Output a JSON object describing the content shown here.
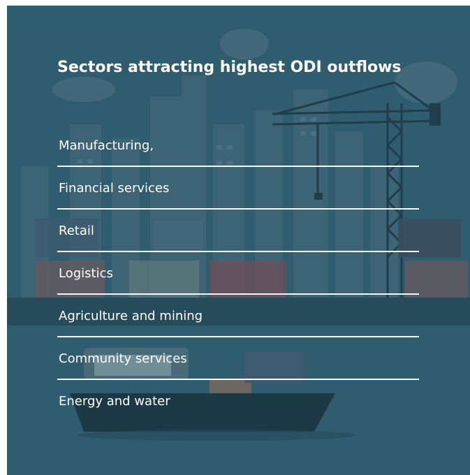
{
  "panel": {
    "title": "Sectors attracting highest ODI outflows",
    "accent_color": "#2f5c6f"
  },
  "sectors": [
    {
      "label": "Manufacturing,"
    },
    {
      "label": "Financial services"
    },
    {
      "label": "Retail"
    },
    {
      "label": "Logistics"
    },
    {
      "label": "Agriculture and mining"
    },
    {
      "label": "Community services"
    },
    {
      "label": "Energy and water"
    }
  ],
  "illustration": {
    "elements": [
      "city-skyline",
      "construction-crane",
      "shipping-containers",
      "cargo-ship",
      "clouds"
    ]
  }
}
